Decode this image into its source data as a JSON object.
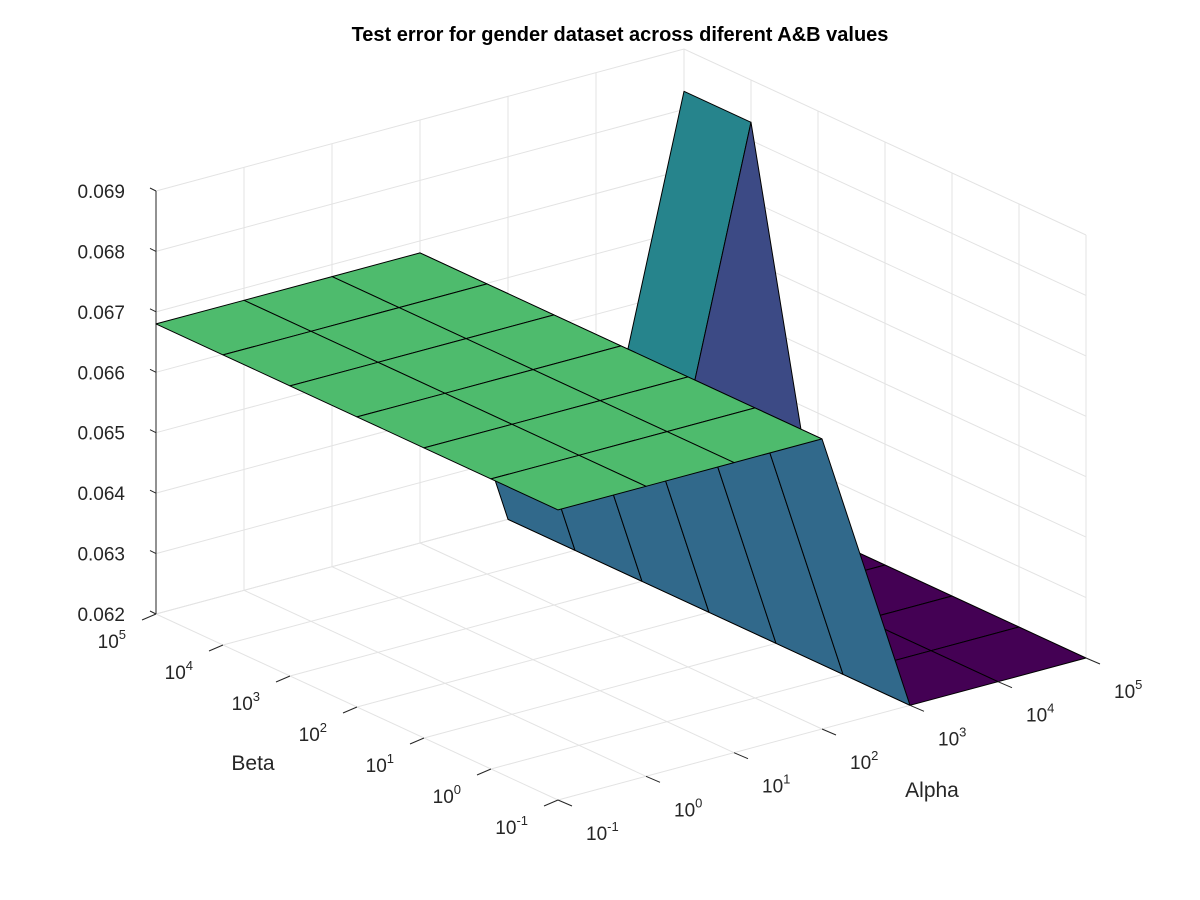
{
  "chart_data": {
    "type": "surface",
    "title": "Test error for gender dataset across diferent A&B values",
    "xlabel": "Alpha",
    "ylabel": "Beta",
    "zlabel": "",
    "x_scale": "log",
    "y_scale": "log",
    "x": [
      0.1,
      1,
      10,
      100,
      1000,
      10000,
      100000
    ],
    "y": [
      0.1,
      1,
      10,
      100,
      1000,
      10000,
      100000
    ],
    "x_tick_labels": [
      {
        "base": "10",
        "exp": "-1"
      },
      {
        "base": "10",
        "exp": "0"
      },
      {
        "base": "10",
        "exp": "1"
      },
      {
        "base": "10",
        "exp": "2"
      },
      {
        "base": "10",
        "exp": "3"
      },
      {
        "base": "10",
        "exp": "4"
      },
      {
        "base": "10",
        "exp": "5"
      }
    ],
    "y_tick_labels": [
      {
        "base": "10",
        "exp": "-1"
      },
      {
        "base": "10",
        "exp": "0"
      },
      {
        "base": "10",
        "exp": "1"
      },
      {
        "base": "10",
        "exp": "2"
      },
      {
        "base": "10",
        "exp": "3"
      },
      {
        "base": "10",
        "exp": "4"
      },
      {
        "base": "10",
        "exp": "5"
      }
    ],
    "z_ticks": [
      0.062,
      0.063,
      0.064,
      0.065,
      0.066,
      0.067,
      0.068,
      0.069
    ],
    "z_tick_labels": [
      "0.062",
      "0.063",
      "0.064",
      "0.065",
      "0.066",
      "0.067",
      "0.068",
      "0.069"
    ],
    "zlim": [
      0.062,
      0.069
    ],
    "z": [
      [
        0.0668,
        0.0668,
        0.0668,
        0.0668,
        0.0668,
        0.0668,
        0.0668
      ],
      [
        0.0668,
        0.0668,
        0.0668,
        0.0668,
        0.0668,
        0.0668,
        0.0668
      ],
      [
        0.0668,
        0.0668,
        0.0668,
        0.0668,
        0.0668,
        0.0668,
        0.0668
      ],
      [
        0.0668,
        0.0668,
        0.0668,
        0.0668,
        0.0668,
        0.0668,
        0.0668
      ],
      [
        0.062,
        0.062,
        0.062,
        0.062,
        0.062,
        0.062,
        0.062
      ],
      [
        0.062,
        0.062,
        0.062,
        0.062,
        0.062,
        0.062,
        0.062
      ],
      [
        0.062,
        0.062,
        0.062,
        0.062,
        0.062,
        0.0683,
        0.0683
      ]
    ],
    "colormap": [
      "#440154",
      "#3b528b",
      "#21918c",
      "#5ec962",
      "#fde725"
    ],
    "grid": true
  }
}
